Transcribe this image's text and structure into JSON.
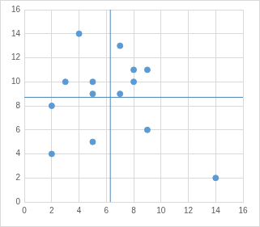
{
  "chart_data": {
    "type": "scatter",
    "x": [
      2,
      2,
      3,
      4,
      5,
      5,
      5,
      7,
      7,
      8,
      8,
      9,
      9,
      14
    ],
    "values": [
      8,
      4,
      10,
      14,
      10,
      9,
      5,
      13,
      9,
      11,
      10,
      11,
      6,
      2
    ],
    "color": "#5b9bd5",
    "vline": 6.29,
    "hline": 8.71,
    "xlim": [
      0,
      16
    ],
    "xticks": [
      0,
      2,
      4,
      6,
      8,
      10,
      12,
      14,
      16
    ],
    "ylim": [
      0,
      16
    ],
    "yticks": [
      0,
      2,
      4,
      6,
      8,
      10,
      12,
      14,
      16
    ],
    "grid": true
  }
}
